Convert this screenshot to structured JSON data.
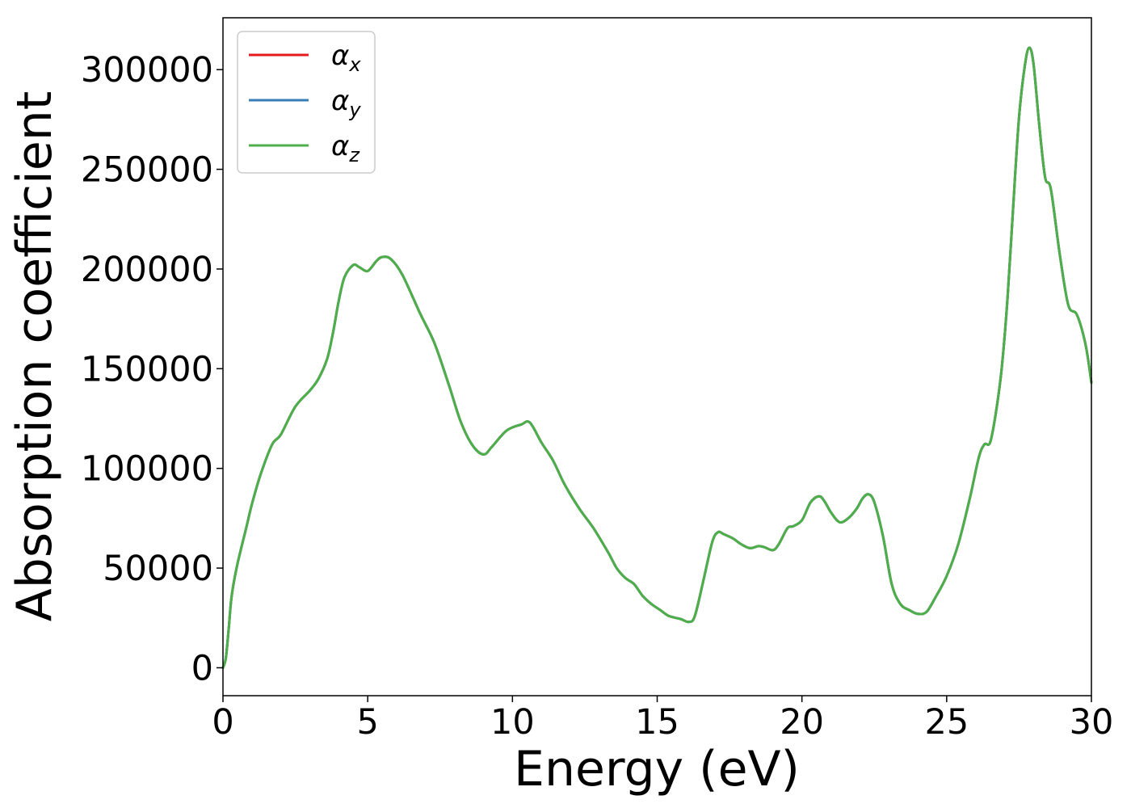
{
  "chart_data": {
    "type": "line",
    "title": "",
    "xlabel": "Energy (eV)",
    "ylabel": "Absorption coefficient",
    "xlim": [
      0,
      30
    ],
    "ylim": [
      -14000,
      326000
    ],
    "xticks": [
      0,
      5,
      10,
      15,
      20,
      25,
      30
    ],
    "yticks": [
      0,
      50000,
      100000,
      150000,
      200000,
      250000,
      300000
    ],
    "xtick_labels": [
      "0",
      "5",
      "10",
      "15",
      "20",
      "25",
      "30"
    ],
    "ytick_labels": [
      "0",
      "50000",
      "100000",
      "150000",
      "200000",
      "250000",
      "300000"
    ],
    "grid": false,
    "legend_position": "top-left",
    "x": [
      0,
      0.1,
      0.2,
      0.3,
      0.5,
      0.8,
      1.0,
      1.3,
      1.7,
      2.0,
      2.5,
      3.0,
      3.3,
      3.6,
      3.8,
      4.0,
      4.2,
      4.5,
      4.7,
      5.0,
      5.3,
      5.5,
      5.8,
      6.2,
      6.8,
      7.3,
      7.8,
      8.2,
      8.6,
      9.0,
      9.3,
      9.8,
      10.3,
      10.6,
      11.0,
      11.4,
      11.8,
      12.3,
      12.8,
      13.3,
      13.6,
      13.9,
      14.2,
      14.5,
      14.8,
      15.1,
      15.4,
      15.8,
      16.1,
      16.3,
      16.6,
      16.9,
      17.1,
      17.3,
      17.6,
      17.9,
      18.2,
      18.5,
      18.7,
      19.0,
      19.2,
      19.5,
      19.7,
      20.0,
      20.3,
      20.6,
      20.8,
      21.0,
      21.3,
      21.6,
      21.9,
      22.1,
      22.3,
      22.5,
      22.8,
      23.1,
      23.4,
      23.7,
      24.0,
      24.3,
      24.6,
      25.0,
      25.4,
      25.8,
      26.1,
      26.3,
      26.5,
      26.7,
      26.9,
      27.1,
      27.3,
      27.5,
      27.7,
      27.85,
      28.0,
      28.2,
      28.4,
      28.6,
      28.9,
      29.2,
      29.5,
      29.8,
      30.0
    ],
    "series": [
      {
        "name": "αx",
        "color": "#e41a1c",
        "values": [
          0,
          5000,
          20000,
          36000,
          52000,
          70000,
          82000,
          97000,
          112000,
          117000,
          131000,
          139000,
          145000,
          155000,
          168000,
          184000,
          196000,
          202000,
          201000,
          199000,
          204000,
          206000,
          205000,
          197000,
          178000,
          163000,
          142000,
          124000,
          112000,
          107000,
          111000,
          119000,
          122000,
          123000,
          113000,
          104000,
          92000,
          80000,
          70000,
          58000,
          50000,
          45000,
          42000,
          36000,
          32000,
          29000,
          26000,
          24500,
          23000,
          26000,
          44000,
          63000,
          68000,
          67000,
          65000,
          62000,
          60000,
          61000,
          60500,
          59000,
          62000,
          70000,
          71000,
          74000,
          83000,
          86000,
          83000,
          78000,
          73000,
          75000,
          80000,
          85000,
          87000,
          83000,
          66000,
          42000,
          32000,
          29000,
          27000,
          28000,
          35000,
          46000,
          62000,
          85000,
          105000,
          112000,
          113000,
          128000,
          150000,
          185000,
          232000,
          276000,
          302000,
          311000,
          303000,
          272000,
          246000,
          240000,
          208000,
          182000,
          177000,
          162000,
          143000
        ]
      },
      {
        "name": "αy",
        "color": "#377eb8",
        "values": [
          0,
          5000,
          20000,
          36000,
          52000,
          70000,
          82000,
          97000,
          112000,
          117000,
          131000,
          139000,
          145000,
          155000,
          168000,
          184000,
          196000,
          202000,
          201000,
          199000,
          204000,
          206000,
          205000,
          197000,
          178000,
          163000,
          142000,
          124000,
          112000,
          107000,
          111000,
          119000,
          122000,
          123000,
          113000,
          104000,
          92000,
          80000,
          70000,
          58000,
          50000,
          45000,
          42000,
          36000,
          32000,
          29000,
          26000,
          24500,
          23000,
          26000,
          44000,
          63000,
          68000,
          67000,
          65000,
          62000,
          60000,
          61000,
          60500,
          59000,
          62000,
          70000,
          71000,
          74000,
          83000,
          86000,
          83000,
          78000,
          73000,
          75000,
          80000,
          85000,
          87000,
          83000,
          66000,
          42000,
          32000,
          29000,
          27000,
          28000,
          35000,
          46000,
          62000,
          85000,
          105000,
          112000,
          113000,
          128000,
          150000,
          185000,
          232000,
          276000,
          302000,
          311000,
          303000,
          272000,
          246000,
          240000,
          208000,
          182000,
          177000,
          162000,
          143000
        ]
      },
      {
        "name": "αz",
        "color": "#4daf4a",
        "values": [
          0,
          5000,
          20000,
          36000,
          52000,
          70000,
          82000,
          97000,
          112000,
          117000,
          131000,
          139000,
          145000,
          155000,
          168000,
          184000,
          196000,
          202000,
          201000,
          199000,
          204000,
          206000,
          205000,
          197000,
          178000,
          163000,
          142000,
          124000,
          112000,
          107000,
          111000,
          119000,
          122000,
          123000,
          113000,
          104000,
          92000,
          80000,
          70000,
          58000,
          50000,
          45000,
          42000,
          36000,
          32000,
          29000,
          26000,
          24500,
          23000,
          26000,
          44000,
          63000,
          68000,
          67000,
          65000,
          62000,
          60000,
          61000,
          60500,
          59000,
          62000,
          70000,
          71000,
          74000,
          83000,
          86000,
          83000,
          78000,
          73000,
          75000,
          80000,
          85000,
          87000,
          83000,
          66000,
          42000,
          32000,
          29000,
          27000,
          28000,
          35000,
          46000,
          62000,
          85000,
          105000,
          112000,
          113000,
          128000,
          150000,
          185000,
          232000,
          276000,
          302000,
          311000,
          303000,
          272000,
          246000,
          240000,
          208000,
          182000,
          177000,
          162000,
          143000
        ]
      }
    ],
    "legend": [
      {
        "symbol": "α",
        "subscript": "x",
        "color": "#e41a1c"
      },
      {
        "symbol": "α",
        "subscript": "y",
        "color": "#377eb8"
      },
      {
        "symbol": "α",
        "subscript": "z",
        "color": "#4daf4a"
      }
    ]
  }
}
